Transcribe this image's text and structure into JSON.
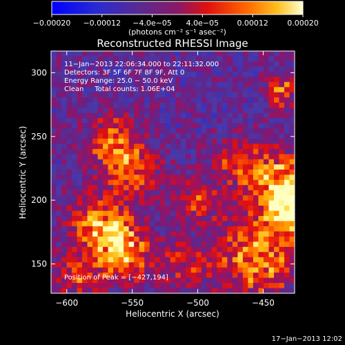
{
  "chart_data": {
    "type": "heatmap",
    "title": "Reconstructed RHESSI Image",
    "xlabel": "Heliocentric X (arcsec)",
    "ylabel": "Heliocentric Y (arcsec)",
    "xlim": [
      -612,
      -426
    ],
    "ylim": [
      127,
      317
    ],
    "x_ticks": [
      -600,
      -550,
      -500,
      -450
    ],
    "y_ticks": [
      150,
      200,
      250,
      300
    ],
    "x_tick_labels": [
      "−600",
      "−550",
      "−500",
      "−450"
    ],
    "y_tick_labels": [
      "150",
      "200",
      "250",
      "300"
    ],
    "colorbar": {
      "range": [
        -0.0002,
        0.0002
      ],
      "ticks": [
        -0.0002,
        -0.00012,
        -4e-05,
        4e-05,
        0.00012,
        0.0002
      ],
      "tick_labels": [
        "−0.00020",
        "−0.00012",
        "−4.0e−05",
        "4.0e−05",
        "0.00012",
        "0.00020"
      ],
      "units_label": "(photons cm⁻² s⁻¹ asec⁻²)"
    },
    "annotations": [
      "11−Jan−2013 22:06:34.000 to 22:11:32.000",
      "Detectors: 3F 5F 6F 7F 8F 9F, Att 0",
      "Energy Range: 25.0 − 50.0 keV",
      "Clean     Total counts: 1.06E+04"
    ],
    "peak_label": "Position of Peak = [−427,194]",
    "timestamp": "17−Jan−2013 12:02"
  },
  "colors": {
    "background": "#000000",
    "foreground": "#ffffff",
    "colormap": [
      "#0000ff",
      "#2a2ad0",
      "#4a3aa8",
      "#5a2a90",
      "#7a1a7a",
      "#aa1050",
      "#e01010",
      "#ff5a00",
      "#ffa000",
      "#ffdc40",
      "#ffffc0"
    ]
  }
}
